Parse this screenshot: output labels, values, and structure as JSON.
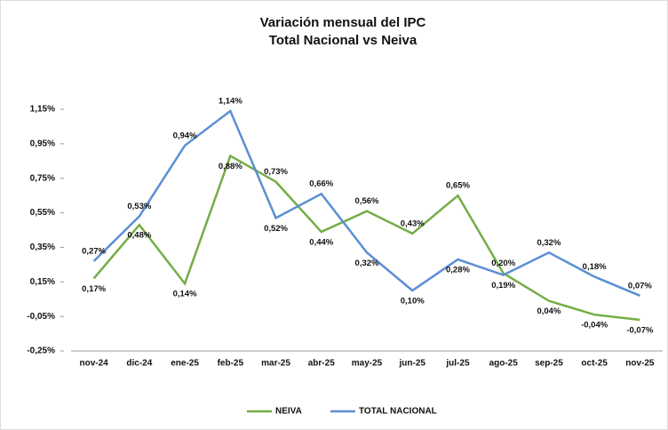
{
  "chart_data": {
    "type": "line",
    "title": "Variación mensual del IPC",
    "subtitle": "Total Nacional vs Neiva",
    "categories": [
      "nov-24",
      "dic-24",
      "ene-25",
      "feb-25",
      "mar-25",
      "abr-25",
      "may-25",
      "jun-25",
      "jul-25",
      "ago-25",
      "sep-25",
      "oct-25",
      "nov-25"
    ],
    "series": [
      {
        "name": "NEIVA",
        "color": "#74ad45",
        "values": [
          0.17,
          0.48,
          0.14,
          0.88,
          0.73,
          0.44,
          0.56,
          0.43,
          0.65,
          0.2,
          0.04,
          -0.04,
          -0.07
        ],
        "value_labels": [
          "0,17%",
          "0,48%",
          "0,14%",
          "0,88%",
          "0,73%",
          "0,44%",
          "0,56%",
          "0,43%",
          "0,65%",
          "0,20%",
          "0,04%",
          "-0,04%",
          "-0,07%"
        ]
      },
      {
        "name": "TOTAL NACIONAL",
        "color": "#5b8fd4",
        "values": [
          0.27,
          0.53,
          0.94,
          1.14,
          0.52,
          0.66,
          0.32,
          0.1,
          0.28,
          0.19,
          0.32,
          0.18,
          0.07
        ],
        "value_labels": [
          "0,27%",
          "0,53%",
          "0,94%",
          "1,14%",
          "0,52%",
          "0,66%",
          "0,32%",
          "0,10%",
          "0,28%",
          "0,19%",
          "0,32%",
          "0,18%",
          "0,07%"
        ]
      }
    ],
    "ylim": [
      -0.25,
      1.15
    ],
    "yticks": [
      {
        "value": -0.25,
        "label": "-0,25%"
      },
      {
        "value": -0.05,
        "label": "-0,05%"
      },
      {
        "value": 0.15,
        "label": "0,15%"
      },
      {
        "value": 0.35,
        "label": "0,35%"
      },
      {
        "value": 0.55,
        "label": "0,55%"
      },
      {
        "value": 0.75,
        "label": "0,75%"
      },
      {
        "value": 0.95,
        "label": "0,95%"
      },
      {
        "value": 1.15,
        "label": "1,15%"
      }
    ],
    "grid": false,
    "legend": "bottom"
  }
}
